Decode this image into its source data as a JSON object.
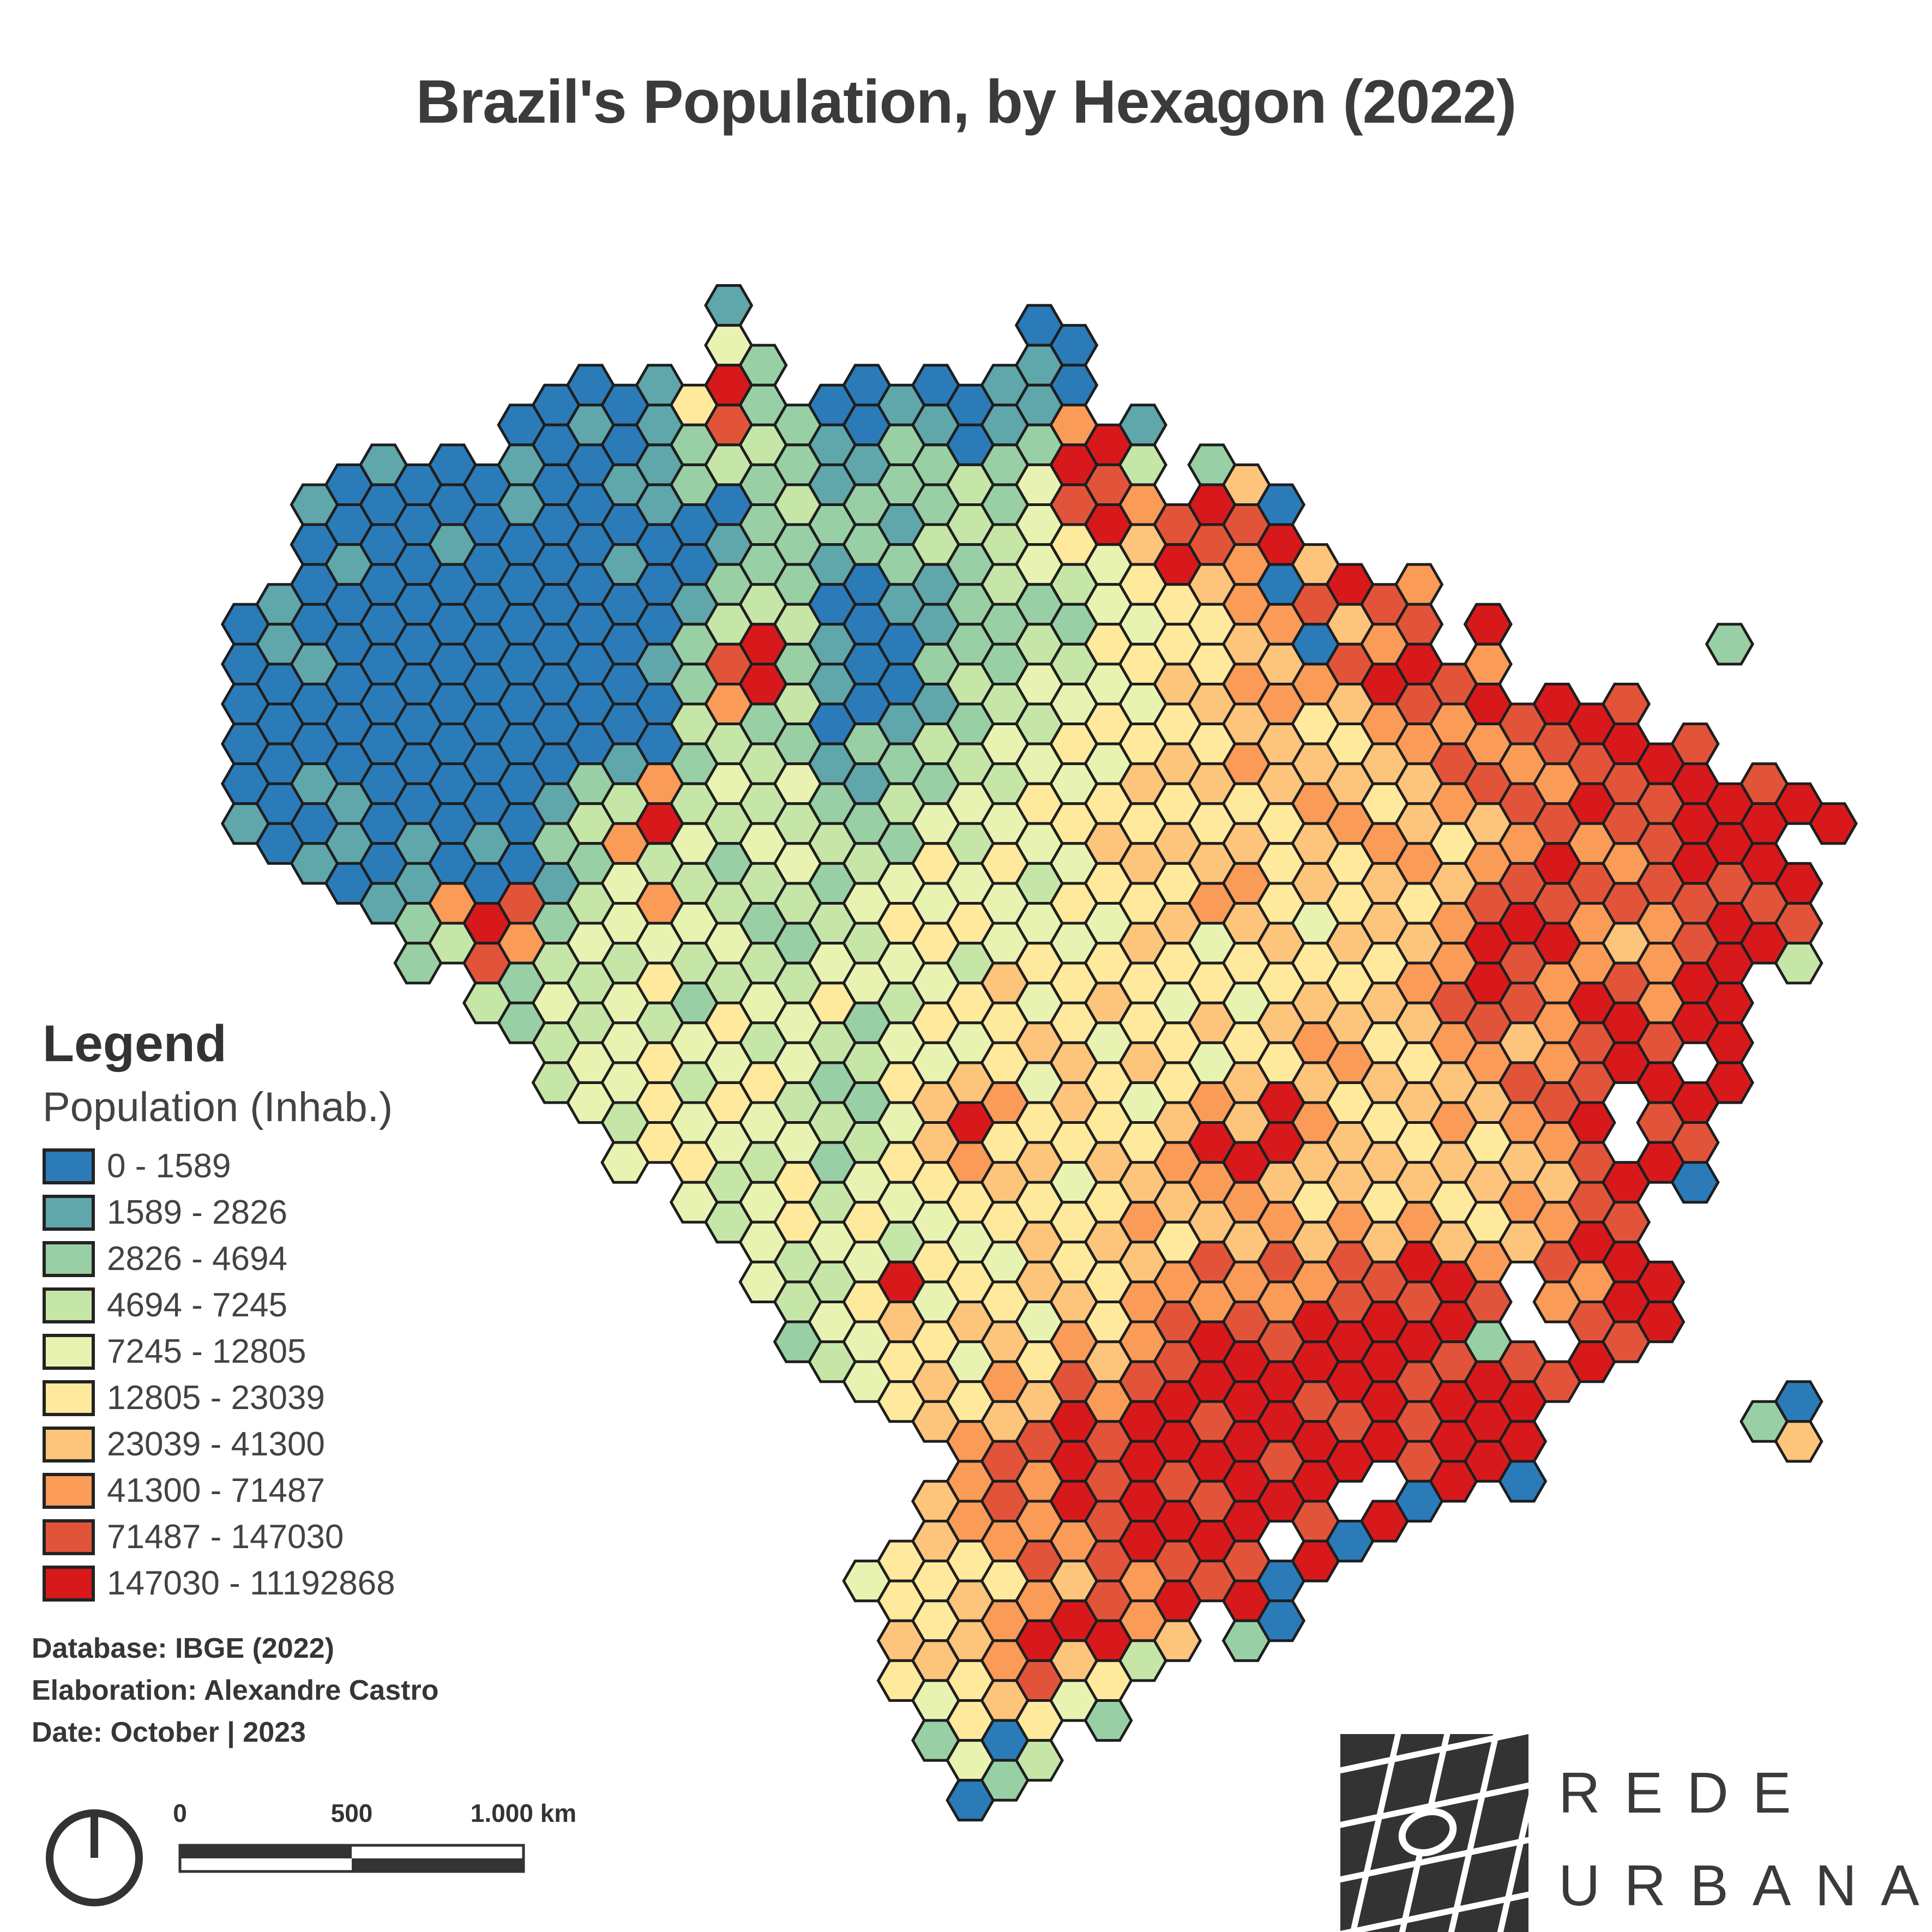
{
  "title": "Brazil's Population, by Hexagon (2022)",
  "legend": {
    "heading": "Legend",
    "subtitle": "Population (Inhab.)",
    "classes": [
      {
        "label": "0 - 1589",
        "color": "#2b7bb9"
      },
      {
        "label": "1589 - 2826",
        "color": "#5fa7ab"
      },
      {
        "label": "2826 - 4694",
        "color": "#99cfa4"
      },
      {
        "label": "4694 - 7245",
        "color": "#c6e6a8"
      },
      {
        "label": "7245 - 12805",
        "color": "#e9f3b1"
      },
      {
        "label": "12805 - 23039",
        "color": "#fee99d"
      },
      {
        "label": "23039 - 41300",
        "color": "#fdc47b"
      },
      {
        "label": "41300 - 71487",
        "color": "#fa9b58"
      },
      {
        "label": "71487 - 147030",
        "color": "#e2543a"
      },
      {
        "label": "147030 - 11192868",
        "color": "#d7191c"
      }
    ]
  },
  "credits": {
    "database": "Database: IBGE (2022)",
    "elaboration": "Elaboration: Alexandre Castro",
    "date": "Date: October | 2023"
  },
  "scalebar": {
    "labels": [
      "0",
      "500",
      "1.000 km"
    ]
  },
  "logo": {
    "line1": "REDE",
    "line2": "URBANA"
  },
  "map": {
    "stroke_color": "#1e1e1e",
    "background": "#ffffff",
    "rows": [
      "..............1........0........................",
      "..............42.......10.......................",
      ".........0001592.00100110.......................",
      "........0010128321021012791.....................",
      "...010001001123221122324983.26..................",
      "..10000010001002322123248978980.................",
      "..010010000100122122323454698796................",
      ".1000000000001232001123234556708987.............",
      "01000000000002393100122325455670678.9......2....",
      "0010000000001289210023243456576789987..........",
      "00000000000003723001123345456675678798998......",
      "0000000000010233212233445456576656787788998....",
      "0011000001237343421324354565656765678879889989..",
      "100101010237943433224344565656567765678788999 9..",
      "..10010001243323423454534565675656767898789899..",
      "....127982347432334545445456765456578987878988..",
      ".....23873434343243453454565456565679897678993..",
      ".......3243452343543456456545456567898798799....",
      "........233434534324545654556567656786789899....",
      ".........344534542354654656546567656787899 9.....",
      "..........435454332469756546769755676789 89......",
      "...........45543423567565657999666565678 98......",
      ".............4345344556545667765656567689 0......",
      "..............345453445656756676767656798.......",
      "...............4334955465567878788997 8799.......",
      "................345646546578787989898 7899.......",
      "................2345546576789989999828 98........",
      "..................456576878999989989998......0..",
      "....................676898998999898999......26..",
      ".....................787989899899 8990...........",
      "....................678798998998 90..............",
      "...................56578789898 90................",
      "..................4556576879890.................",
      "...................656799976 20..................",
      "...................56578653.....................",
      "....................456542......................",
      "....................2403........................",
      ".....................02........................."
    ]
  }
}
